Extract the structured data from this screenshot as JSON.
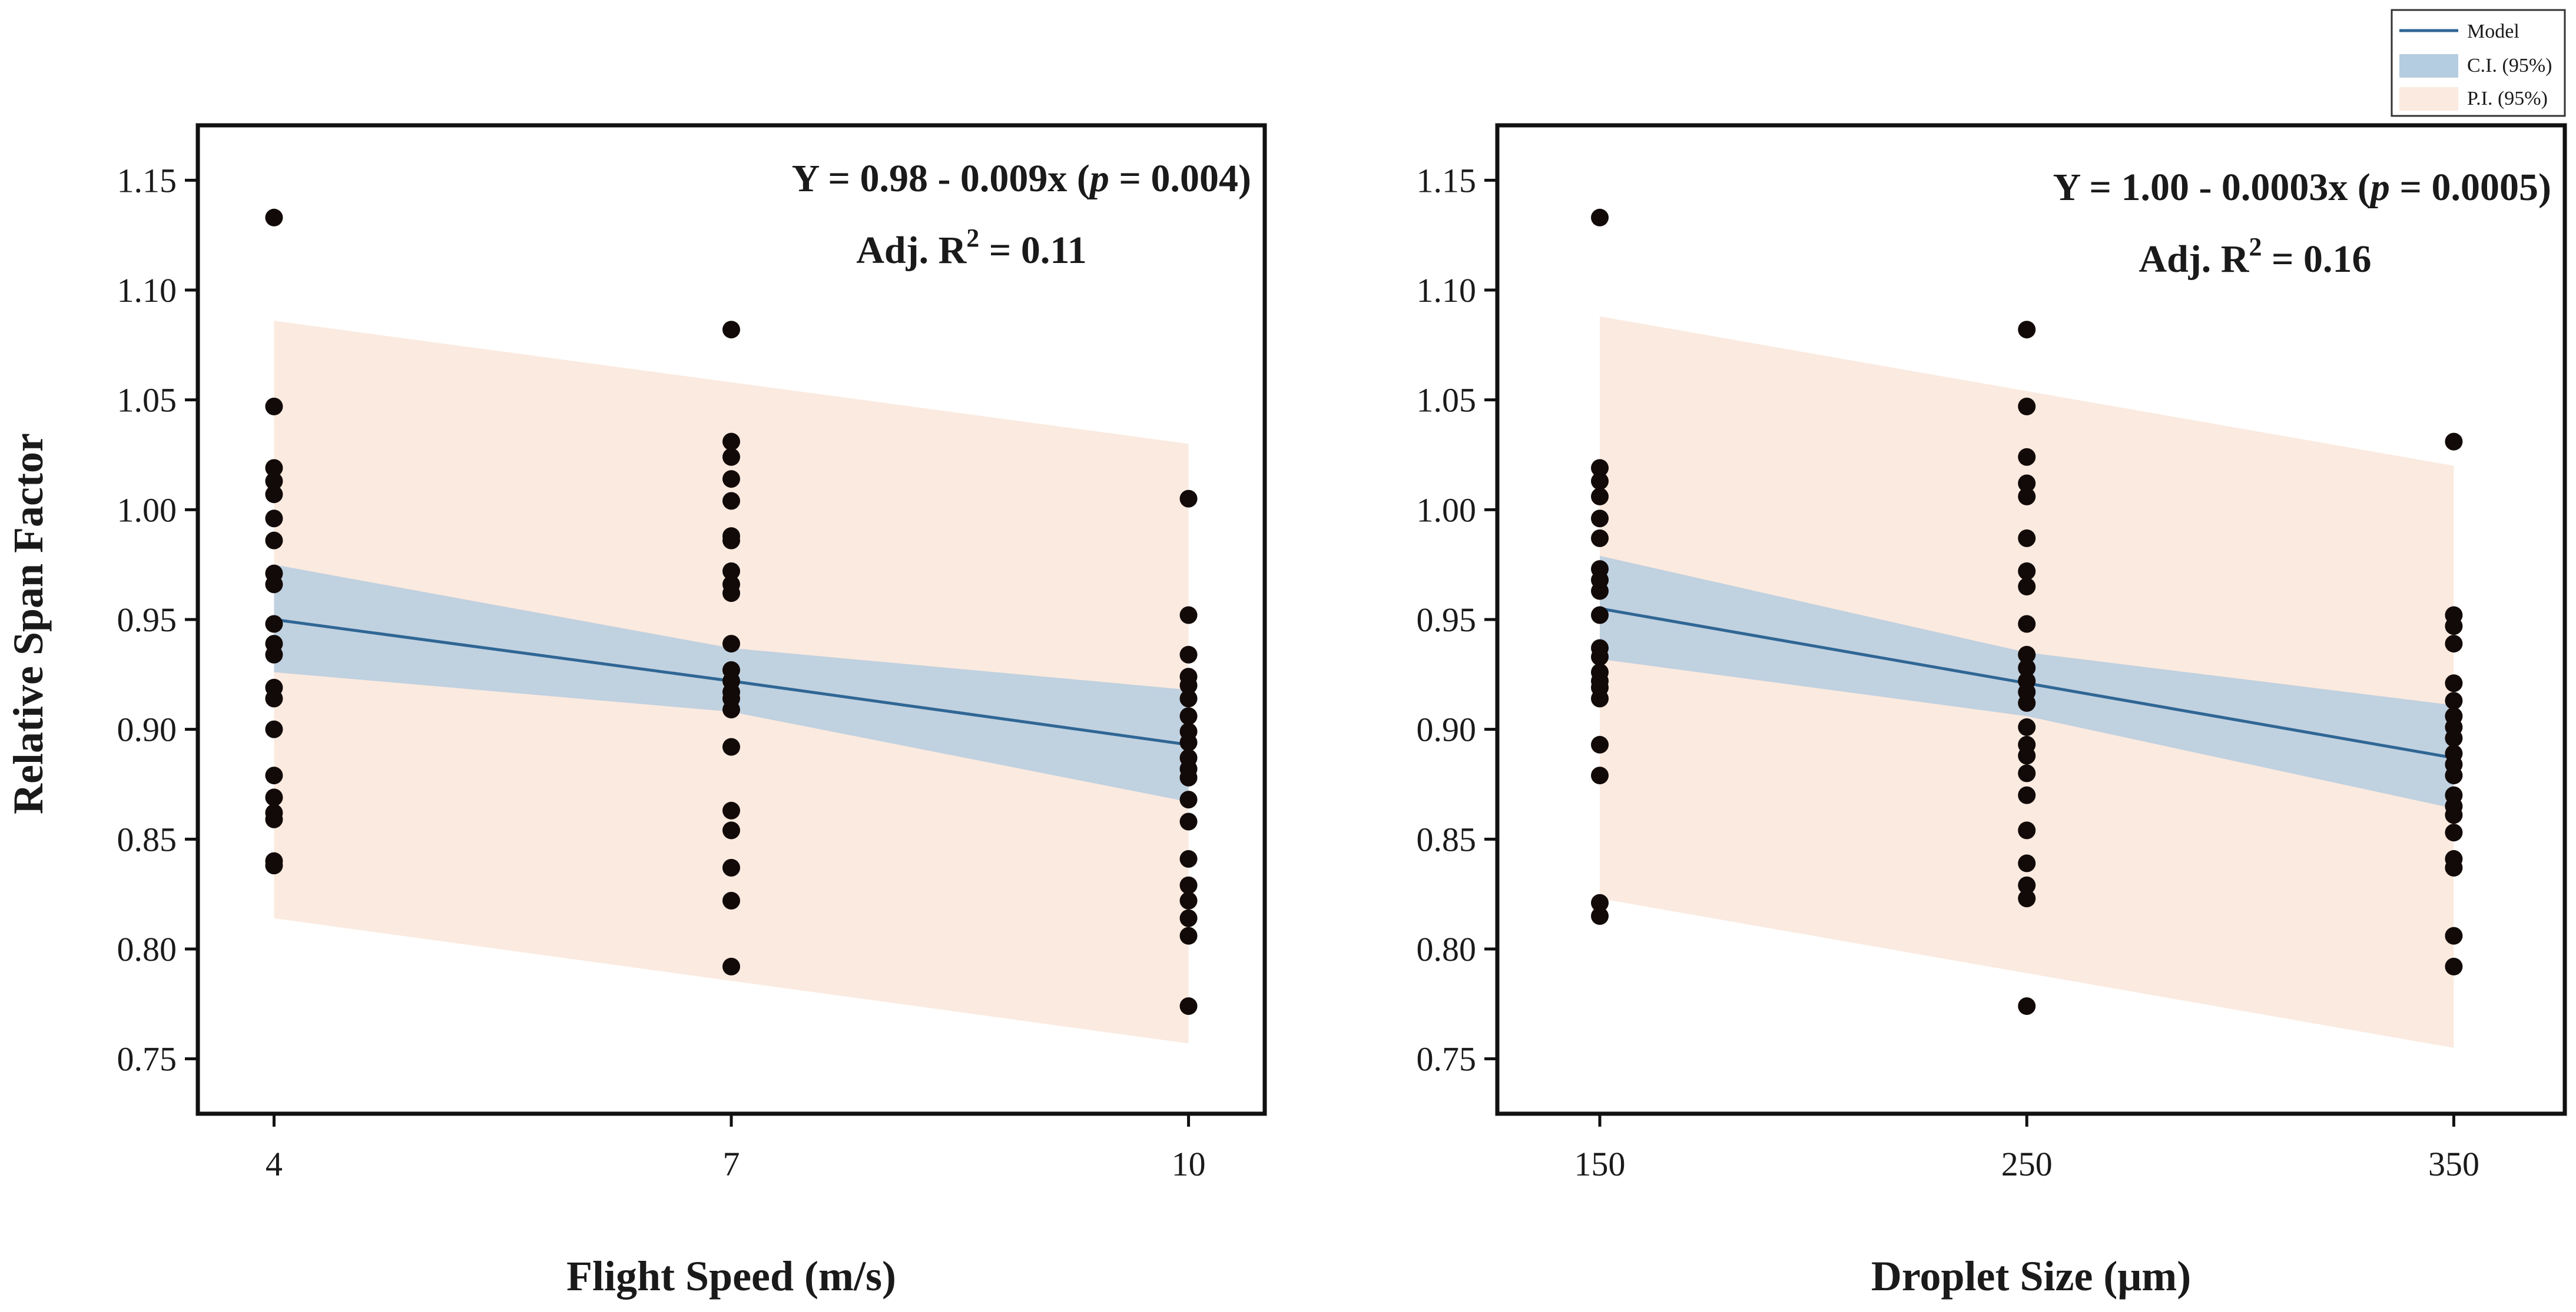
{
  "colors": {
    "model": "#2f6694",
    "ci": "#b5cde0",
    "pi": "#fbeadf",
    "point": "#120a08",
    "axis": "#111111"
  },
  "legend": {
    "model": "Model",
    "ci": "C.I. (95%)",
    "pi": "P.I. (95%)"
  },
  "shared_ylabel": "Relative Span Factor",
  "chart_data": [
    {
      "type": "scatter",
      "title": "",
      "xlabel": "Flight Speed (m/s)",
      "ylabel": "Relative Span Factor",
      "xlim": [
        3.5,
        10.5
      ],
      "ylim": [
        0.725,
        1.175
      ],
      "xticks": [
        4,
        7,
        10
      ],
      "xtick_labels": [
        "4",
        "7",
        "10"
      ],
      "yticks": [
        0.75,
        0.8,
        0.85,
        0.9,
        0.95,
        1.0,
        1.05,
        1.1,
        1.15
      ],
      "ytick_labels": [
        "0.75",
        "0.80",
        "0.85",
        "0.90",
        "0.95",
        "1.00",
        "1.05",
        "1.10",
        "1.15"
      ],
      "equation": {
        "prefix": "Y = 0.98 - 0.009x (",
        "p": "p",
        "suffix": " = 0.004)"
      },
      "r2": {
        "prefix": "Adj. R",
        "sup": "2",
        "suffix": " = 0.11"
      },
      "model": {
        "x": [
          4,
          7,
          10
        ],
        "y": [
          0.95,
          0.922,
          0.893
        ]
      },
      "ci": {
        "x": [
          4,
          7,
          10
        ],
        "lower": [
          0.926,
          0.908,
          0.867
        ],
        "upper": [
          0.975,
          0.937,
          0.918
        ]
      },
      "pi": {
        "x": [
          4,
          10
        ],
        "lower": [
          0.814,
          0.757
        ],
        "upper": [
          1.086,
          1.03
        ]
      },
      "points": [
        {
          "x": 4,
          "y": [
            1.133,
            1.047,
            1.019,
            1.013,
            1.007,
            0.996,
            0.986,
            0.971,
            0.966,
            0.948,
            0.939,
            0.934,
            0.919,
            0.914,
            0.9,
            0.879,
            0.869,
            0.862,
            0.859,
            0.84,
            0.838
          ]
        },
        {
          "x": 7,
          "y": [
            1.082,
            1.031,
            1.024,
            1.014,
            1.004,
            0.988,
            0.986,
            0.972,
            0.966,
            0.962,
            0.939,
            0.927,
            0.922,
            0.917,
            0.914,
            0.909,
            0.892,
            0.863,
            0.854,
            0.837,
            0.822,
            0.792
          ]
        },
        {
          "x": 10,
          "y": [
            1.005,
            0.952,
            0.934,
            0.924,
            0.92,
            0.914,
            0.906,
            0.899,
            0.894,
            0.887,
            0.882,
            0.878,
            0.868,
            0.858,
            0.841,
            0.829,
            0.822,
            0.814,
            0.806,
            0.774
          ]
        }
      ]
    },
    {
      "type": "scatter",
      "title": "",
      "xlabel": "Droplet Size (μm)",
      "ylabel": "Relative Span Factor",
      "xlim": [
        126,
        376
      ],
      "ylim": [
        0.725,
        1.175
      ],
      "xticks": [
        150,
        250,
        350
      ],
      "xtick_labels": [
        "150",
        "250",
        "350"
      ],
      "yticks": [
        0.75,
        0.8,
        0.85,
        0.9,
        0.95,
        1.0,
        1.05,
        1.1,
        1.15
      ],
      "ytick_labels": [
        "0.75",
        "0.80",
        "0.85",
        "0.90",
        "0.95",
        "1.00",
        "1.05",
        "1.10",
        "1.15"
      ],
      "equation": {
        "prefix": "Y = 1.00 - 0.0003x (",
        "p": "p",
        "suffix": " = 0.0005)"
      },
      "r2": {
        "prefix": "Adj. R",
        "sup": "2",
        "suffix": " = 0.16"
      },
      "model": {
        "x": [
          150,
          250,
          350
        ],
        "y": [
          0.955,
          0.921,
          0.887
        ]
      },
      "ci": {
        "x": [
          150,
          250,
          350
        ],
        "lower": [
          0.932,
          0.906,
          0.864
        ],
        "upper": [
          0.979,
          0.935,
          0.911
        ]
      },
      "pi": {
        "x": [
          150,
          350
        ],
        "lower": [
          0.823,
          0.755
        ],
        "upper": [
          1.088,
          1.02
        ]
      },
      "points": [
        {
          "x": 150,
          "y": [
            1.133,
            1.019,
            1.013,
            1.006,
            0.996,
            0.987,
            0.973,
            0.968,
            0.963,
            0.952,
            0.937,
            0.933,
            0.926,
            0.922,
            0.919,
            0.914,
            0.893,
            0.879,
            0.821,
            0.815
          ]
        },
        {
          "x": 250,
          "y": [
            1.082,
            1.047,
            1.024,
            1.012,
            1.006,
            0.987,
            0.972,
            0.965,
            0.948,
            0.934,
            0.928,
            0.922,
            0.917,
            0.912,
            0.901,
            0.893,
            0.888,
            0.88,
            0.87,
            0.854,
            0.839,
            0.829,
            0.823,
            0.774
          ]
        },
        {
          "x": 350,
          "y": [
            1.031,
            0.952,
            0.947,
            0.939,
            0.921,
            0.913,
            0.906,
            0.901,
            0.896,
            0.889,
            0.884,
            0.879,
            0.87,
            0.865,
            0.861,
            0.853,
            0.841,
            0.837,
            0.806,
            0.792
          ]
        }
      ]
    }
  ]
}
